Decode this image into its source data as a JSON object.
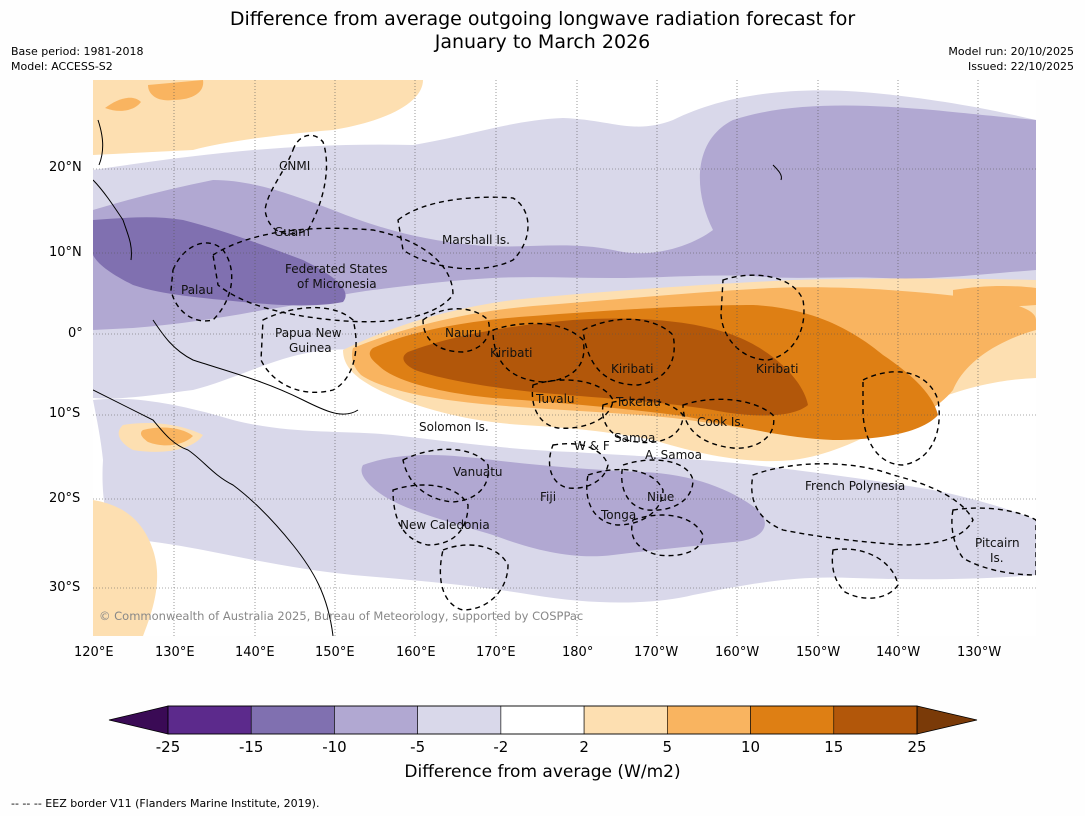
{
  "title_line1": "Difference from average outgoing longwave radiation forecast for",
  "title_line2": "January to March 2026",
  "meta_left": [
    "Base period: 1981-2018",
    "Model: ACCESS-S2"
  ],
  "meta_right": [
    "Model run: 20/10/2025",
    "Issued: 22/10/2025"
  ],
  "lat_labels": [
    "20°N",
    "10°N",
    "0°",
    "10°S",
    "20°S",
    "30°S"
  ],
  "lon_labels": [
    "120°E",
    "130°E",
    "140°E",
    "150°E",
    "160°E",
    "170°E",
    "180°",
    "170°W",
    "160°W",
    "150°W",
    "140°W",
    "130°W"
  ],
  "places": {
    "cnmi": "CNMI",
    "guam": "Guam",
    "marshall": "Marshall Is.",
    "fsm1": "Federated States",
    "fsm2": "of Micronesia",
    "palau": "Palau",
    "png1": "Papua New",
    "png2": "Guinea",
    "nauru": "Nauru",
    "kiribati1": "Kiribati",
    "kiribati2": "Kiribati",
    "kiribati3": "Kiribati",
    "tuvalu": "Tuvalu",
    "tokelau": "Tokelau",
    "cook": "Cook Is.",
    "solomon": "Solomon Is.",
    "wf": "W & F",
    "samoa": "Samoa",
    "asamoa": "A. Samoa",
    "vanuatu": "Vanuatu",
    "fiji": "Fiji",
    "niue": "Niue",
    "tonga": "Tonga",
    "newcal": "New Caledonia",
    "frpoly": "French Polynesia",
    "pitcairn1": "Pitcairn",
    "pitcairn2": "Is."
  },
  "copyright": "© Commonwealth of Australia 2025, Bureau of Meteorology, supported by COSPPac",
  "colorbar": {
    "ticks": [
      "-25",
      "-15",
      "-10",
      "-5",
      "-2",
      "2",
      "5",
      "10",
      "15",
      "25"
    ],
    "colors": [
      "#5c2a8c",
      "#8070b0",
      "#b1a8d2",
      "#d9d8ea",
      "#ffffff",
      "#fddfb1",
      "#f9b460",
      "#de7f14",
      "#b2570a"
    ],
    "under_color": "#3a0a55",
    "over_color": "#7a3a08",
    "label": "Difference from average (W/m2)"
  },
  "footer": "--  --  -- EEZ border V11 (Flanders Marine Institute, 2019)."
}
